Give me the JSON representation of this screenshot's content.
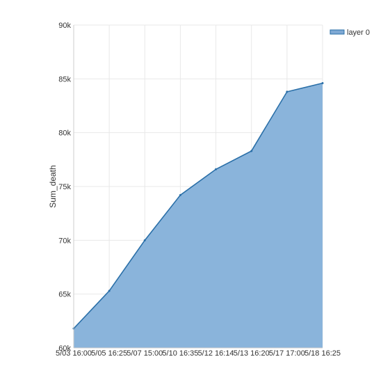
{
  "chart_data": {
    "type": "area",
    "title": "",
    "xlabel": "",
    "ylabel": "Sum_death",
    "ylim": [
      60000,
      90000
    ],
    "yticks": [
      60000,
      65000,
      70000,
      75000,
      80000,
      85000,
      90000
    ],
    "ytick_labels": [
      "60k",
      "65k",
      "70k",
      "75k",
      "80k",
      "85k",
      "90k"
    ],
    "categories": [
      "5/03 16:00",
      "5/05 16:25",
      "5/07 15:00",
      "5/10 16:35",
      "5/12 16:14",
      "5/13 16:20",
      "5/17 17:00",
      "5/18 16:25"
    ],
    "series": [
      {
        "name": "layer 0",
        "values": [
          61800,
          65300,
          70000,
          74200,
          76600,
          78300,
          83800,
          84600
        ]
      }
    ],
    "grid": true,
    "legend_position": "top-right",
    "colors": {
      "area_fill": "#8ab4db",
      "line": "#2a6fa8",
      "grid": "#e8e8e8",
      "axis": "#cccccc",
      "legend_swatch": "#7fa9d4"
    }
  }
}
